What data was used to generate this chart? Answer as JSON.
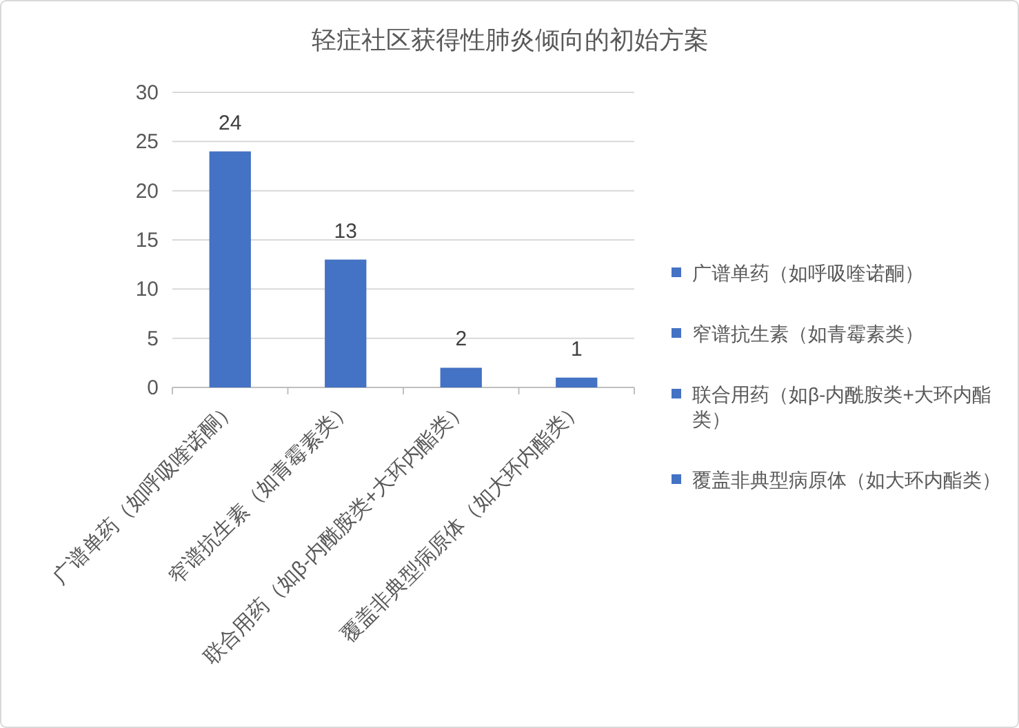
{
  "chart_data": {
    "type": "bar",
    "title": "轻症社区获得性肺炎倾向的初始方案",
    "categories": [
      "广谱单药（如呼吸喹诺酮）",
      "窄谱抗生素（如青霉素类）",
      "联合用药（如β-内酰胺类+大环内酯类）",
      "覆盖非典型病原体（如大环内酯类）"
    ],
    "series": [
      {
        "name": "广谱单药（如呼吸喹诺酮）",
        "color": "#4472c4",
        "values": [
          24,
          null,
          null,
          null
        ]
      },
      {
        "name": "窄谱抗生素（如青霉素类）",
        "color": "#4472c4",
        "values": [
          null,
          13,
          null,
          null
        ]
      },
      {
        "name": "联合用药（如β-内酰胺类+大环内酯类）",
        "color": "#4472c4",
        "values": [
          null,
          null,
          2,
          null
        ]
      },
      {
        "name": "覆盖非典型病原体（如大环内酯类）",
        "color": "#4472c4",
        "values": [
          null,
          null,
          null,
          1
        ]
      }
    ],
    "stacked": true,
    "ylim": [
      0,
      30
    ],
    "yticks": [
      0,
      5,
      10,
      15,
      20,
      25,
      30
    ],
    "grid": "y",
    "legend": "right",
    "data_labels": true
  }
}
